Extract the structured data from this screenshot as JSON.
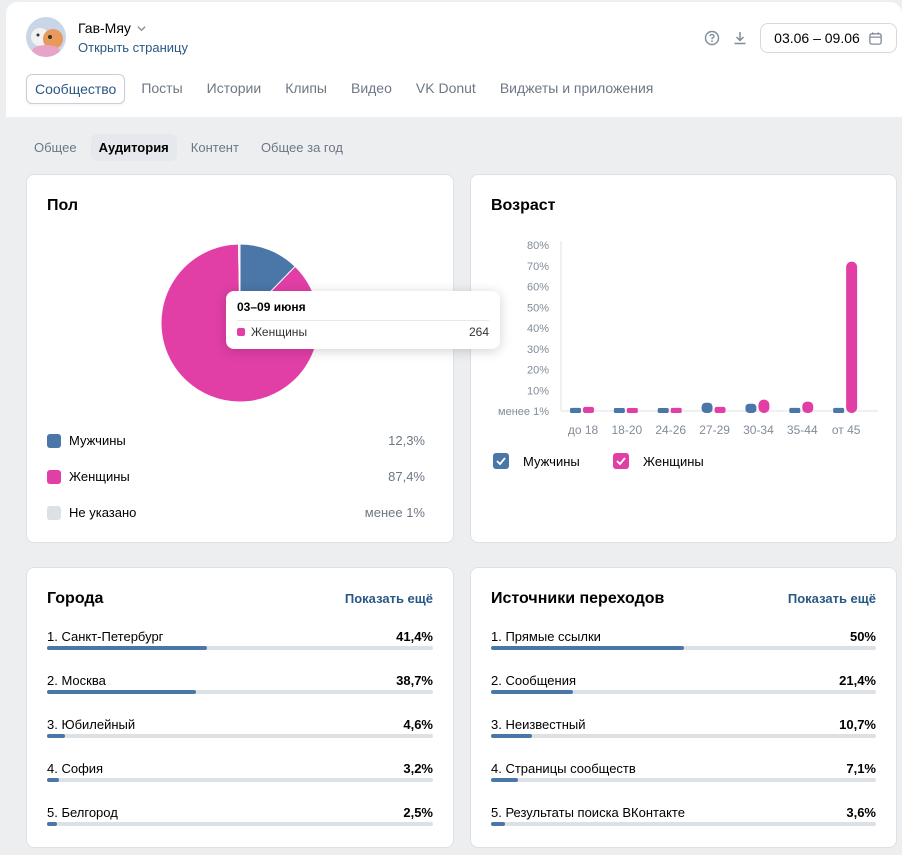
{
  "header": {
    "group_name": "Гав-Мяу",
    "open_page": "Открыть страницу",
    "date_range": "03.06 – 09.06",
    "tabs": [
      "Сообщество",
      "Посты",
      "Истории",
      "Клипы",
      "Видео",
      "VK Donut",
      "Виджеты и приложения"
    ],
    "active_tab": 0
  },
  "subtabs": {
    "items": [
      "Общее",
      "Аудитория",
      "Контент",
      "Общее за год"
    ],
    "active": 1
  },
  "gender": {
    "title": "Пол",
    "legend": [
      {
        "label": "Мужчины",
        "value": "12,3%",
        "color": "#4a76a8"
      },
      {
        "label": "Женщины",
        "value": "87,4%",
        "color": "#e13fa6"
      },
      {
        "label": "Не указано",
        "value": "менее 1%",
        "color": "#dce1e6"
      }
    ],
    "tooltip": {
      "title": "03–09 июня",
      "label": "Женщины",
      "value": "264"
    }
  },
  "age": {
    "title": "Возраст",
    "legend": [
      {
        "label": "Мужчины",
        "color": "#4a76a8"
      },
      {
        "label": "Женщины",
        "color": "#e13fa6"
      }
    ]
  },
  "chart_data": [
    {
      "type": "pie",
      "labels": [
        "Мужчины",
        "Женщины",
        "Не указано"
      ],
      "values": [
        12.3,
        87.4,
        0.3
      ],
      "colors": [
        "#4a76a8",
        "#e13fa6",
        "#dce1e6"
      ]
    },
    {
      "type": "bar",
      "categories": [
        "до 18",
        "18-20",
        "24-26",
        "27-29",
        "30-34",
        "35-44",
        "от 45"
      ],
      "y_ticks": [
        "менее 1%",
        "10%",
        "20%",
        "30%",
        "40%",
        "50%",
        "60%",
        "70%",
        "80%"
      ],
      "ylim": [
        0,
        80
      ],
      "series": [
        {
          "name": "Мужчины",
          "color": "#4a76a8",
          "values": [
            1.5,
            0.5,
            0.5,
            4,
            3.5,
            1.5,
            1.5
          ]
        },
        {
          "name": "Женщины",
          "color": "#e13fa6",
          "values": [
            2,
            0.5,
            1.5,
            2,
            5.5,
            4.5,
            72
          ]
        }
      ],
      "grid": false
    }
  ],
  "cities": {
    "title": "Города",
    "more": "Показать ещё",
    "items": [
      {
        "label": "1. Санкт-Петербург",
        "value": "41,4%",
        "pct": 41.4
      },
      {
        "label": "2. Москва",
        "value": "38,7%",
        "pct": 38.7
      },
      {
        "label": "3. Юбилейный",
        "value": "4,6%",
        "pct": 4.6
      },
      {
        "label": "4. София",
        "value": "3,2%",
        "pct": 3.2
      },
      {
        "label": "5. Белгород",
        "value": "2,5%",
        "pct": 2.5
      }
    ]
  },
  "sources": {
    "title": "Источники переходов",
    "more": "Показать ещё",
    "items": [
      {
        "label": "1. Прямые ссылки",
        "value": "50%",
        "pct": 50
      },
      {
        "label": "2. Сообщения",
        "value": "21,4%",
        "pct": 21.4
      },
      {
        "label": "3. Неизвестный",
        "value": "10,7%",
        "pct": 10.7
      },
      {
        "label": "4. Страницы сообществ",
        "value": "7,1%",
        "pct": 7.1
      },
      {
        "label": "5. Результаты поиска ВКонтакте",
        "value": "3,6%",
        "pct": 3.6
      }
    ]
  }
}
